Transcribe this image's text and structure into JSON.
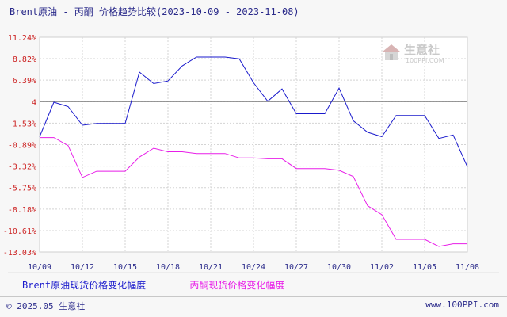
{
  "title": "Brent原油 - 丙酮 价格趋势比较(2023-10-09 - 2023-11-08)",
  "footer": {
    "copyright": "© 2025.05 生意社",
    "website": "www.100PPI.com"
  },
  "watermark": {
    "name": "生意社",
    "url": "100PPI.COM"
  },
  "colors": {
    "brent": "#1a1acc",
    "acetone": "#e81ee8",
    "grid": "#d4d4d4",
    "axis_text": "#cc2222",
    "ref_line": "#777777"
  },
  "chart_data": {
    "type": "line",
    "title": "Brent原油 - 丙酮 价格趋势比较(2023-10-09 - 2023-11-08)",
    "y_ticks": [
      "11.24%",
      "8.82%",
      "6.39%",
      "4",
      "1.53%",
      "-0.89%",
      "-3.32%",
      "-5.75%",
      "-8.18%",
      "-10.61%",
      "-13.03%"
    ],
    "y_tick_values": [
      11.24,
      8.82,
      6.39,
      3.96,
      1.53,
      -0.89,
      -3.32,
      -5.75,
      -8.18,
      -10.61,
      -13.03
    ],
    "ylim": [
      -13.03,
      11.24
    ],
    "reference_line": 3.96,
    "x_ticks": [
      "10/09",
      "10/12",
      "10/15",
      "10/18",
      "10/21",
      "10/24",
      "10/27",
      "10/30",
      "11/02",
      "11/05",
      "11/08"
    ],
    "x": [
      "10/09",
      "10/10",
      "10/11",
      "10/12",
      "10/13",
      "10/14",
      "10/15",
      "10/16",
      "10/17",
      "10/18",
      "10/19",
      "10/20",
      "10/21",
      "10/22",
      "10/23",
      "10/24",
      "10/25",
      "10/26",
      "10/27",
      "10/28",
      "10/29",
      "10/30",
      "10/31",
      "11/01",
      "11/02",
      "11/03",
      "11/04",
      "11/05",
      "11/06",
      "11/07",
      "11/08"
    ],
    "grid": true,
    "legend_position": "bottom",
    "series": [
      {
        "name": "Brent原油现货价格变化幅度",
        "color": "#1a1acc",
        "values": [
          0,
          3.9,
          3.4,
          1.3,
          1.5,
          1.5,
          1.5,
          7.3,
          6.0,
          6.3,
          8.0,
          9.0,
          9.0,
          9.0,
          8.8,
          6.1,
          4.0,
          5.4,
          2.6,
          2.6,
          2.6,
          5.5,
          1.8,
          0.5,
          0.0,
          2.4,
          2.4,
          2.4,
          -0.2,
          0.2,
          -3.4
        ]
      },
      {
        "name": "丙酮现货价格变化幅度",
        "color": "#e81ee8",
        "values": [
          -0.1,
          -0.1,
          -1.0,
          -4.6,
          -3.9,
          -3.9,
          -3.9,
          -2.3,
          -1.3,
          -1.7,
          -1.7,
          -1.9,
          -1.9,
          -1.9,
          -2.4,
          -2.4,
          -2.5,
          -2.5,
          -3.6,
          -3.6,
          -3.6,
          -3.8,
          -4.5,
          -7.8,
          -8.8,
          -11.6,
          -11.6,
          -11.6,
          -12.4,
          -12.1,
          -12.1
        ]
      }
    ]
  }
}
